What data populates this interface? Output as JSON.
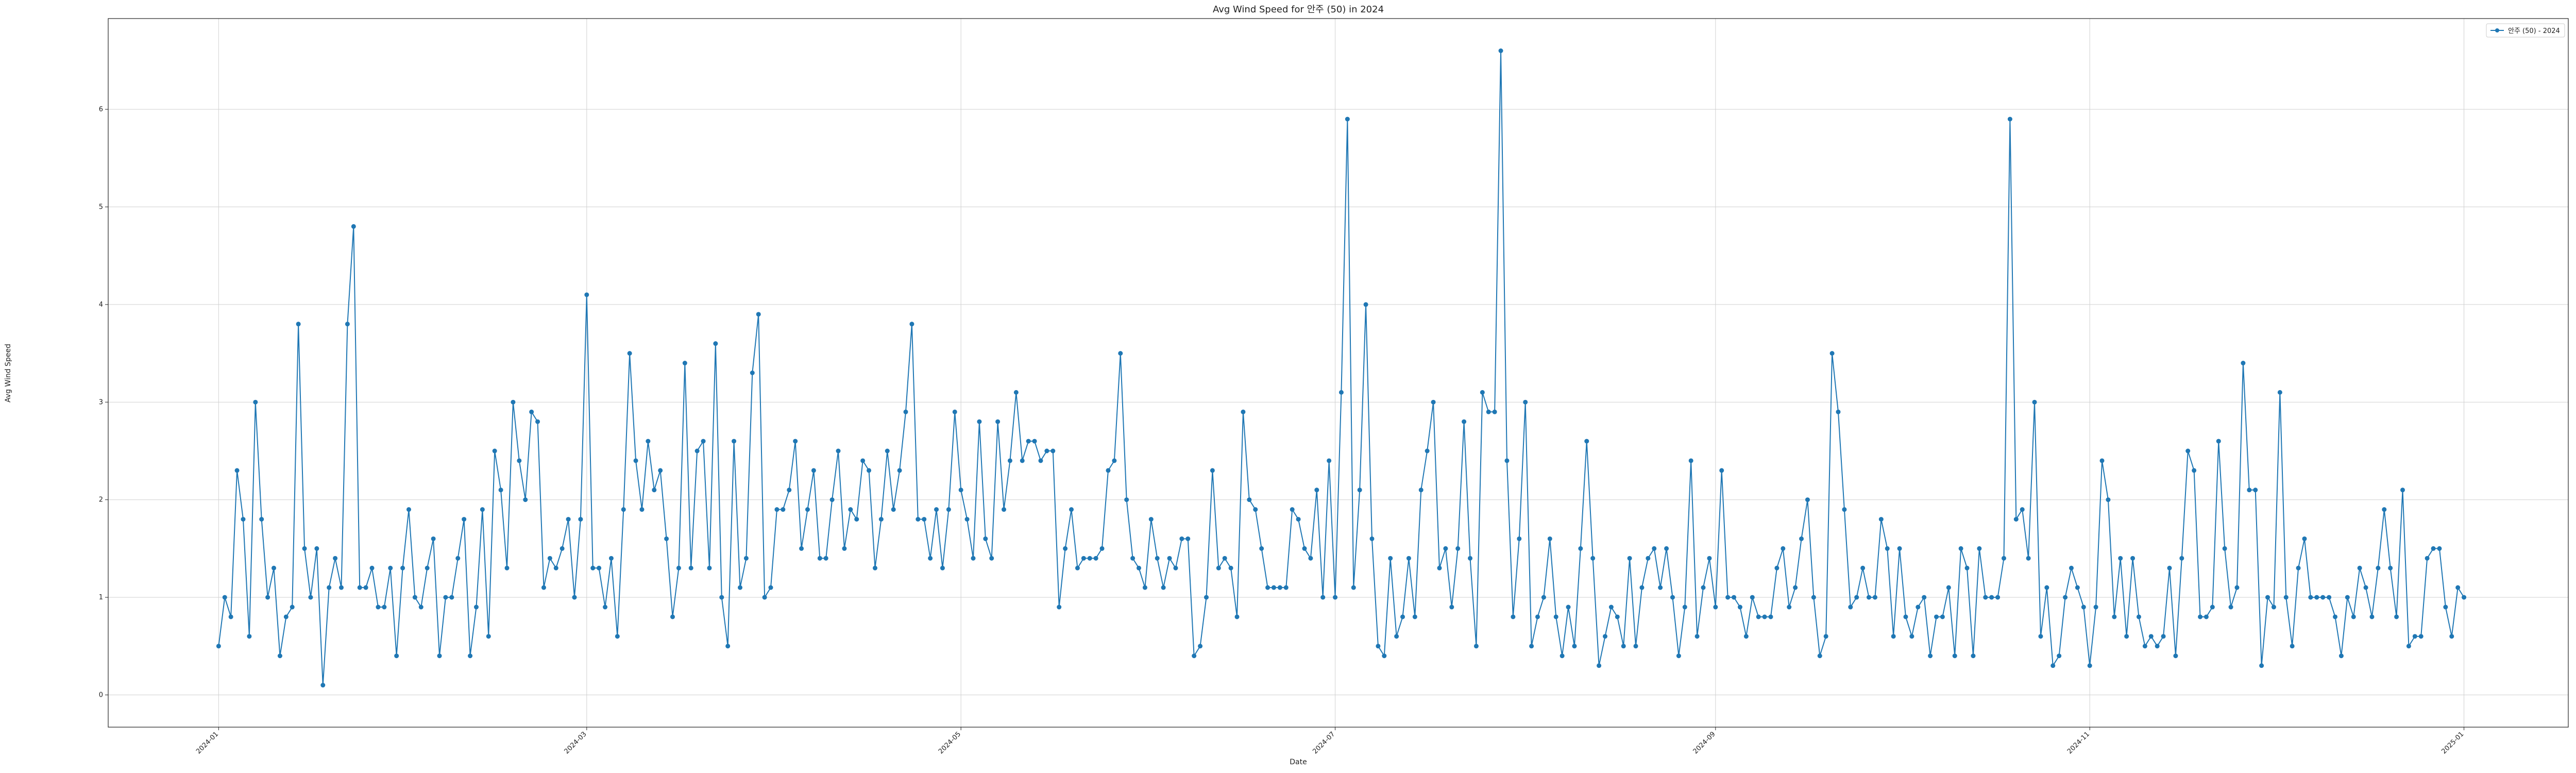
{
  "chart_data": {
    "type": "line",
    "title": "Avg Wind Speed for 안주 (50) in 2024",
    "xlabel": "Date",
    "ylabel": "Avg Wind Speed",
    "x_start": "2024-01-01",
    "x_end": "2024-12-31",
    "xlim": [
      "2023-12-14",
      "2025-01-18"
    ],
    "ylim": [
      -0.33,
      6.93
    ],
    "x_ticks": [
      {
        "date": "2024-01-01",
        "label": "2024-01"
      },
      {
        "date": "2024-03-01",
        "label": "2024-03"
      },
      {
        "date": "2024-05-01",
        "label": "2024-05"
      },
      {
        "date": "2024-07-01",
        "label": "2024-07"
      },
      {
        "date": "2024-09-01",
        "label": "2024-09"
      },
      {
        "date": "2024-11-01",
        "label": "2024-11"
      },
      {
        "date": "2025-01-01",
        "label": "2025-01"
      }
    ],
    "y_ticks": [
      0,
      1,
      2,
      3,
      4,
      5,
      6
    ],
    "grid": true,
    "legend_position": "top-right",
    "colors": {
      "line": "#1f77b4",
      "grid": "#d0d0d0",
      "axis": "#222222"
    },
    "series": [
      {
        "name": "안주 (50) - 2024",
        "values": [
          0.5,
          1.0,
          0.8,
          2.3,
          1.8,
          0.6,
          3.0,
          1.8,
          1.0,
          1.3,
          0.4,
          0.8,
          0.9,
          3.8,
          1.5,
          1.0,
          1.5,
          0.1,
          1.1,
          1.4,
          1.1,
          3.8,
          4.8,
          1.1,
          1.1,
          1.3,
          0.9,
          0.9,
          1.3,
          0.4,
          1.3,
          1.9,
          1.0,
          0.9,
          1.3,
          1.6,
          0.4,
          1.0,
          1.0,
          1.4,
          1.8,
          0.4,
          0.9,
          1.9,
          0.6,
          2.5,
          2.1,
          1.3,
          3.0,
          2.4,
          2.0,
          2.9,
          2.8,
          1.1,
          1.4,
          1.3,
          1.5,
          1.8,
          1.0,
          1.8,
          4.1,
          1.3,
          1.3,
          0.9,
          1.4,
          0.6,
          1.9,
          3.5,
          2.4,
          1.9,
          2.6,
          2.1,
          2.3,
          1.6,
          0.8,
          1.3,
          3.4,
          1.3,
          2.5,
          2.6,
          1.3,
          3.6,
          1.0,
          0.5,
          2.6,
          1.1,
          1.4,
          3.3,
          3.9,
          1.0,
          1.1,
          1.9,
          1.9,
          2.1,
          2.6,
          1.5,
          1.9,
          2.3,
          1.4,
          1.4,
          2.0,
          2.5,
          1.5,
          1.9,
          1.8,
          2.4,
          2.3,
          1.3,
          1.8,
          2.5,
          1.9,
          2.3,
          2.9,
          3.8,
          1.8,
          1.8,
          1.4,
          1.9,
          1.3,
          1.9,
          2.9,
          2.1,
          1.8,
          1.4,
          2.8,
          1.6,
          1.4,
          2.8,
          1.9,
          2.4,
          3.1,
          2.4,
          2.6,
          2.6,
          2.4,
          2.5,
          2.5,
          0.9,
          1.5,
          1.9,
          1.3,
          1.4,
          1.4,
          1.4,
          1.5,
          2.3,
          2.4,
          3.5,
          2.0,
          1.4,
          1.3,
          1.1,
          1.8,
          1.4,
          1.1,
          1.4,
          1.3,
          1.6,
          1.6,
          0.4,
          0.5,
          1.0,
          2.3,
          1.3,
          1.4,
          1.3,
          0.8,
          2.9,
          2.0,
          1.9,
          1.5,
          1.1,
          1.1,
          1.1,
          1.1,
          1.9,
          1.8,
          1.5,
          1.4,
          2.1,
          1.0,
          2.4,
          1.0,
          3.1,
          5.9,
          1.1,
          2.1,
          4.0,
          1.6,
          0.5,
          0.4,
          1.4,
          0.6,
          0.8,
          1.4,
          0.8,
          2.1,
          2.5,
          3.0,
          1.3,
          1.5,
          0.9,
          1.5,
          2.8,
          1.4,
          0.5,
          3.1,
          2.9,
          2.9,
          6.6,
          2.4,
          0.8,
          1.6,
          3.0,
          0.5,
          0.8,
          1.0,
          1.6,
          0.8,
          0.4,
          0.9,
          0.5,
          1.5,
          2.6,
          1.4,
          0.3,
          0.6,
          0.9,
          0.8,
          0.5,
          1.4,
          0.5,
          1.1,
          1.4,
          1.5,
          1.1,
          1.5,
          1.0,
          0.4,
          0.9,
          2.4,
          0.6,
          1.1,
          1.4,
          0.9,
          2.3,
          1.0,
          1.0,
          0.9,
          0.6,
          1.0,
          0.8,
          0.8,
          0.8,
          1.3,
          1.5,
          0.9,
          1.1,
          1.6,
          2.0,
          1.0,
          0.4,
          0.6,
          3.5,
          2.9,
          1.9,
          0.9,
          1.0,
          1.3,
          1.0,
          1.0,
          1.8,
          1.5,
          0.6,
          1.5,
          0.8,
          0.6,
          0.9,
          1.0,
          0.4,
          0.8,
          0.8,
          1.1,
          0.4,
          1.5,
          1.3,
          0.4,
          1.5,
          1.0,
          1.0,
          1.0,
          1.4,
          5.9,
          1.8,
          1.9,
          1.4,
          3.0,
          0.6,
          1.1,
          0.3,
          0.4,
          1.0,
          1.3,
          1.1,
          0.9,
          0.3,
          0.9,
          2.4,
          2.0,
          0.8,
          1.4,
          0.6,
          1.4,
          0.8,
          0.5,
          0.6,
          0.5,
          0.6,
          1.3,
          0.4,
          1.4,
          2.5,
          2.3,
          0.8,
          0.8,
          0.9,
          2.6,
          1.5,
          0.9,
          1.1,
          3.4,
          2.1,
          2.1,
          0.3,
          1.0,
          0.9,
          3.1,
          1.0,
          0.5,
          1.3,
          1.6,
          1.0,
          1.0,
          1.0,
          1.0,
          0.8,
          0.4,
          1.0,
          0.8,
          1.3,
          1.1,
          0.8,
          1.3,
          1.9,
          1.3,
          0.8,
          2.1,
          0.5,
          0.6,
          0.6,
          1.4,
          1.5,
          1.5,
          0.9,
          0.6,
          1.1,
          1.0
        ]
      }
    ]
  }
}
